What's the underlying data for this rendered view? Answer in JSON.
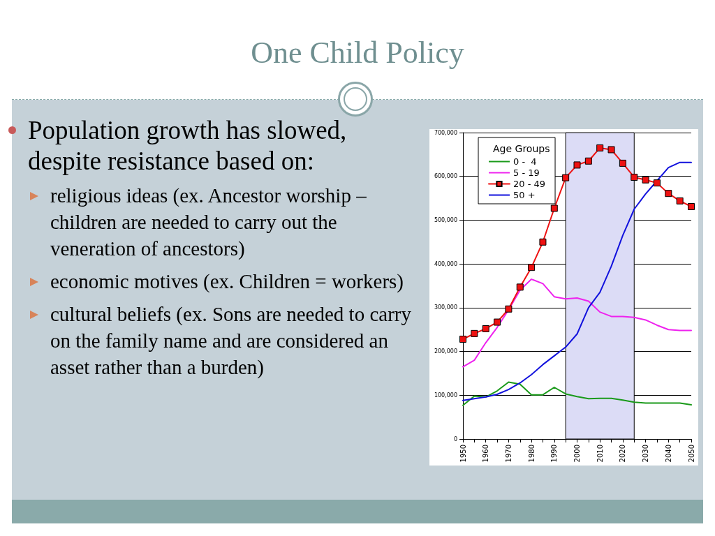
{
  "chart_data": {
    "type": "line",
    "title": "One Child Policy",
    "legend_title": "Age Groups",
    "annotations": [
      "Population growth has slowed, despite resistance based on:",
      "religious ideas (ex. Ancestor worship – children are needed to carry out the veneration of ancestors)",
      "economic motives (ex. Children = workers)",
      "cultural beliefs (ex. Sons are needed to carry on the family name and are considered an asset rather than a burden)"
    ],
    "x": [
      1950,
      1955,
      1960,
      1965,
      1970,
      1975,
      1980,
      1985,
      1990,
      1995,
      2000,
      2005,
      2010,
      2015,
      2020,
      2025,
      2030,
      2035,
      2040,
      2045,
      2050
    ],
    "series": [
      {
        "name": "0 -  4",
        "color": "#1a9a1a",
        "marker": "none",
        "values": [
          77000,
          98000,
          96000,
          110000,
          130000,
          125000,
          101000,
          101000,
          118000,
          103000,
          97000,
          92000,
          93000,
          93000,
          89000,
          84000,
          82000,
          82000,
          82000,
          82000,
          78000
        ]
      },
      {
        "name": "5 - 19",
        "color": "#ee22ee",
        "marker": "none",
        "values": [
          165000,
          180000,
          220000,
          255000,
          295000,
          340000,
          365000,
          355000,
          325000,
          320000,
          322000,
          315000,
          290000,
          280000,
          280000,
          278000,
          272000,
          260000,
          250000,
          248000,
          248000
        ]
      },
      {
        "name": "20 - 49",
        "color": "#ee1111",
        "marker": "square",
        "values": [
          228000,
          241000,
          252000,
          267000,
          297000,
          347000,
          392000,
          450000,
          527000,
          597000,
          626000,
          635000,
          665000,
          661000,
          630000,
          598000,
          592000,
          585000,
          561000,
          544000,
          531000
        ]
      },
      {
        "name": "50 +",
        "color": "#1111dd",
        "marker": "none",
        "values": [
          88000,
          92000,
          96000,
          102000,
          113000,
          128000,
          147000,
          170000,
          190000,
          210000,
          240000,
          300000,
          335000,
          395000,
          465000,
          525000,
          560000,
          590000,
          620000,
          632000,
          632000
        ]
      }
    ],
    "xlim": [
      1950,
      2050
    ],
    "xticks": [
      1950,
      {
        "value": 1955,
        "label": null
      },
      1960,
      {
        "value": 1965,
        "label": null
      },
      1970,
      {
        "value": 1975,
        "label": null
      },
      1980,
      {
        "value": 1985,
        "label": null
      },
      1990,
      {
        "value": 1995,
        "label": null
      },
      2000,
      {
        "value": 2005,
        "label": null
      },
      2010,
      {
        "value": 2015,
        "label": null
      },
      2020,
      {
        "value": 2025,
        "label": null
      },
      2030,
      {
        "value": 2035,
        "label": null
      },
      2040,
      {
        "value": 2045,
        "label": null
      },
      2050
    ],
    "ylim": [
      0,
      700000
    ],
    "yticks": [
      0,
      {
        "value": 100000,
        "label": "100,000"
      },
      {
        "value": 200000,
        "label": "200,000"
      },
      {
        "value": 300000,
        "label": "300,000"
      },
      {
        "value": 400000,
        "label": "400,000"
      },
      {
        "value": 500000,
        "label": "500,000"
      },
      {
        "value": 600000,
        "label": "600,000"
      },
      {
        "value": 700000,
        "label": "700,000"
      }
    ],
    "grid": "y",
    "legend": "top left",
    "bands": [
      {
        "axis": "x",
        "from": 1995,
        "to": 2025,
        "color": "#dcdcf6"
      }
    ]
  }
}
